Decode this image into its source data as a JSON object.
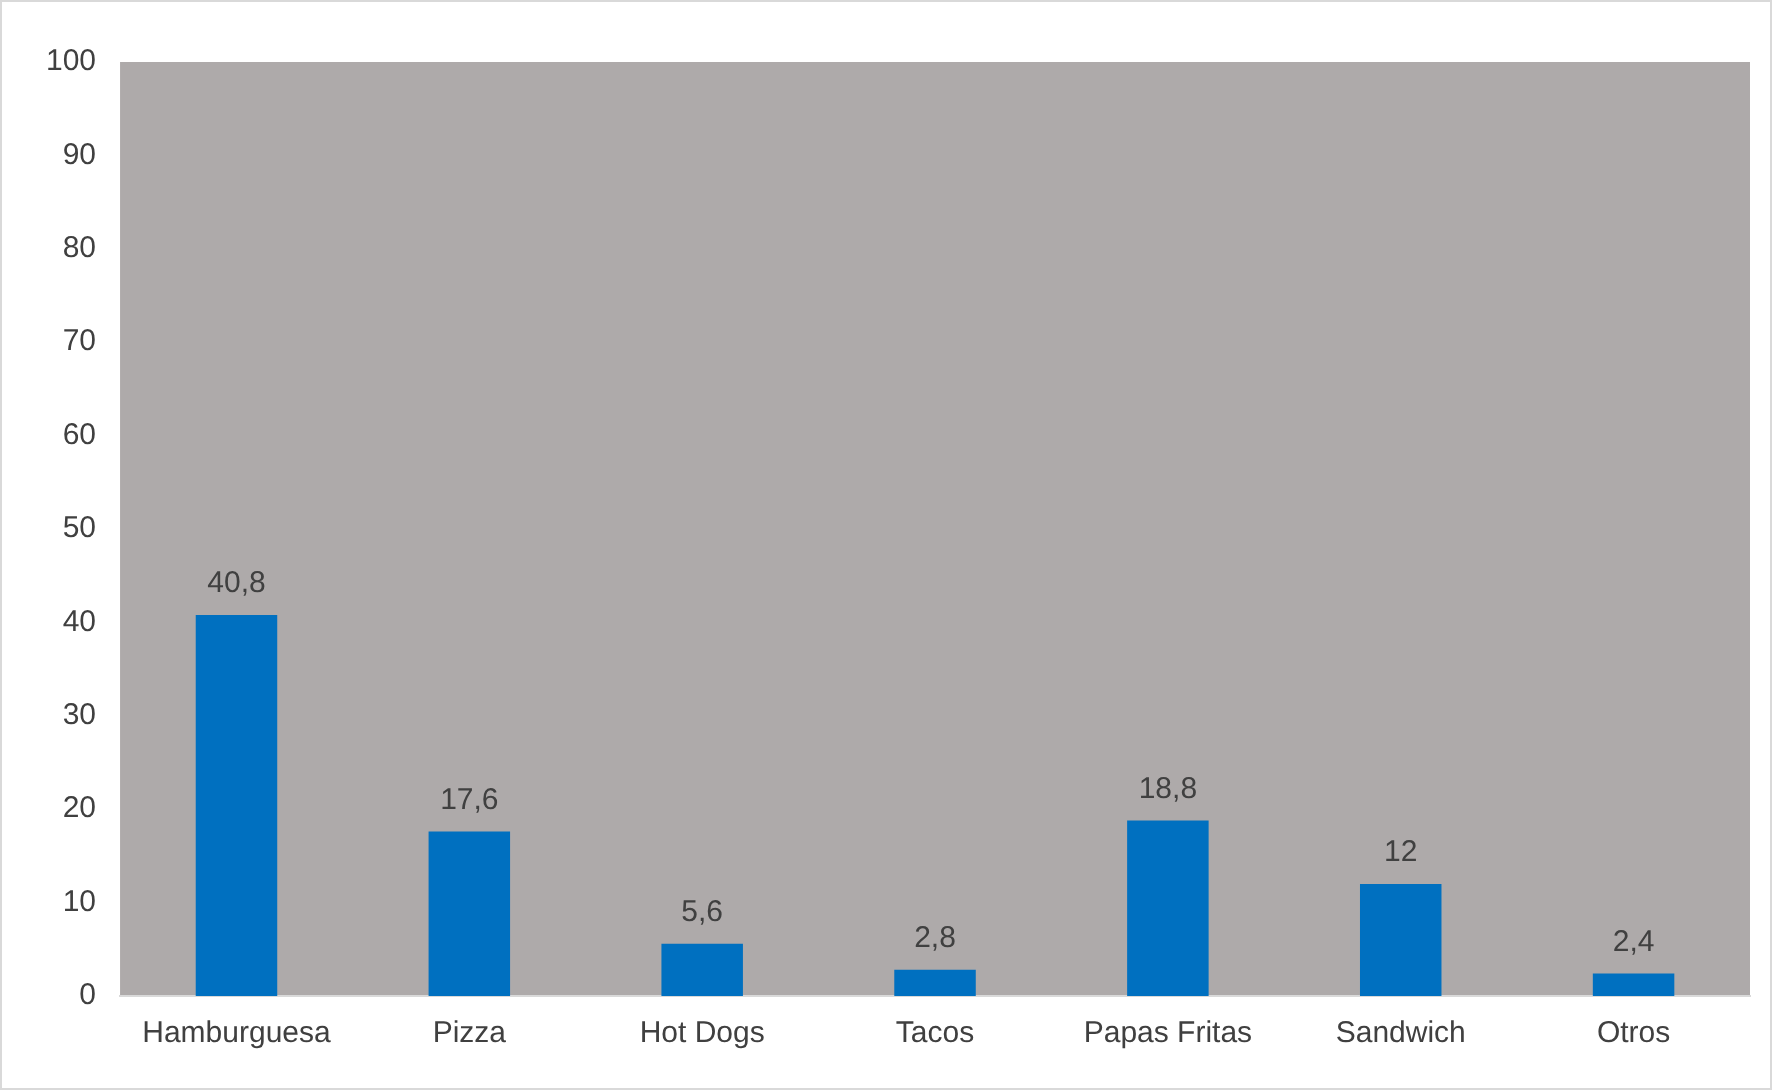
{
  "chart_data": {
    "type": "bar",
    "categories": [
      "Hamburguesa",
      "Pizza",
      "Hot Dogs",
      "Tacos",
      "Papas Fritas",
      "Sandwich",
      "Otros"
    ],
    "values": [
      40.8,
      17.6,
      5.6,
      2.8,
      18.8,
      12,
      2.4
    ],
    "value_labels": [
      "40,8",
      "17,6",
      "5,6",
      "2,8",
      "18,8",
      "12",
      "2,4"
    ],
    "color": "#0070c0",
    "ylim": [
      0,
      100
    ],
    "yticks": [
      0,
      10,
      20,
      30,
      40,
      50,
      60,
      70,
      80,
      90,
      100
    ],
    "grid": false,
    "legend": false
  }
}
